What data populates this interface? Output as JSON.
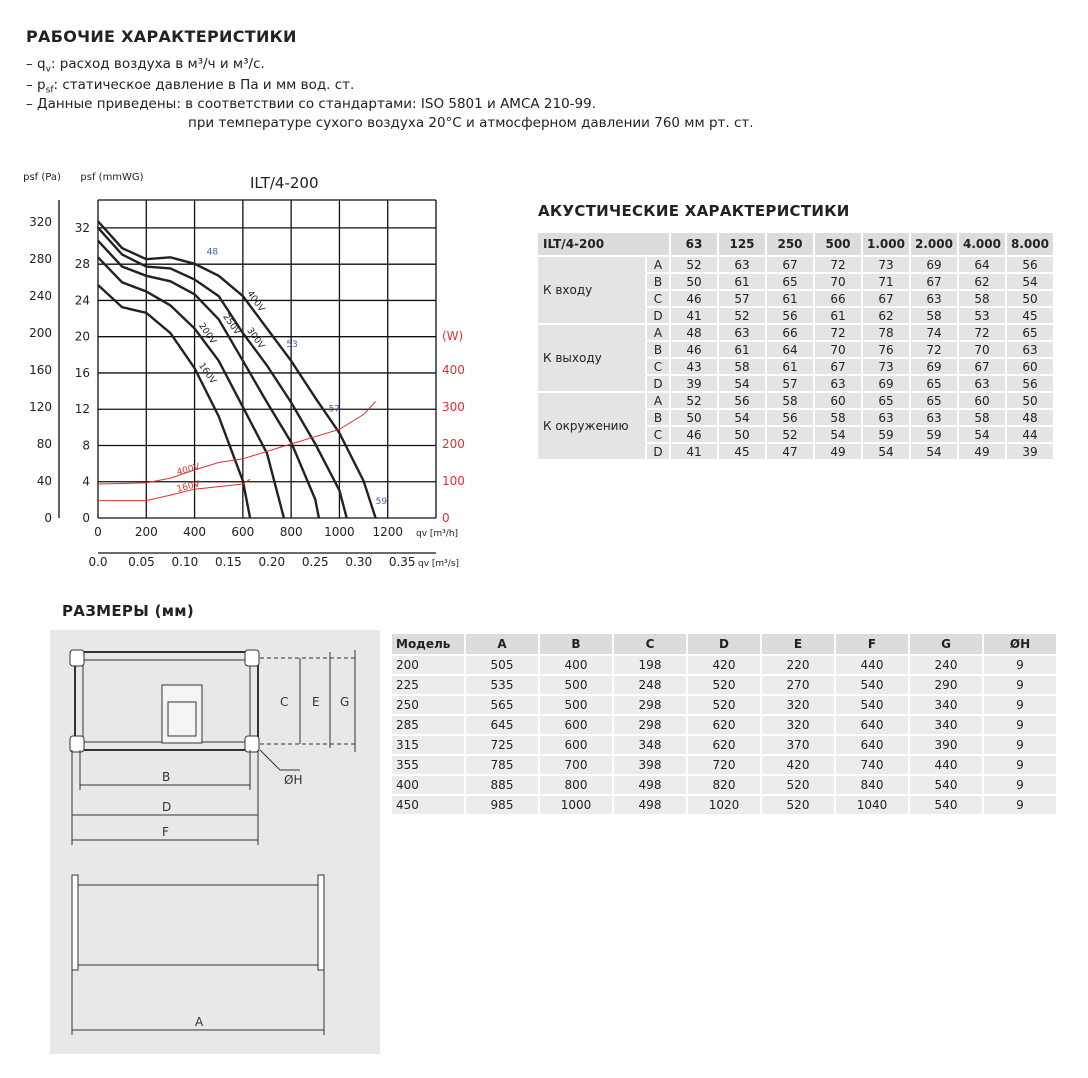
{
  "header": {
    "title": "РАБОЧИЕ ХАРАКТЕРИСТИКИ",
    "qv_sym": "q",
    "qv_sub": "v",
    "qv_text": ": расход воздуха в м³/ч и м³/с.",
    "psf_sym": "p",
    "psf_sub": "sf",
    "psf_text": ": статическое давление в Па и мм вод. ст.",
    "data_line": "– Данные приведены: в соответствии со стандартами: ISO 5801 и AMCA 210-99.",
    "data_line2": "при температуре сухого воздуха 20°C и атмосферном давлении 760 мм рт. ст."
  },
  "chart_data": {
    "type": "line",
    "title": "ILT/4-200",
    "ylabel_left": "psf (Pa)",
    "ylabel_mm": "psf (mmWG)",
    "ylabel_right": "(W)",
    "xlabel": "qv [m³/h]",
    "xlabel2": "qv [m³/s]",
    "xlim": [
      0,
      1400
    ],
    "ylim_pa": [
      0,
      344
    ],
    "ylim_w": [
      0,
      860
    ],
    "grid": true,
    "x_ticks": [
      0,
      200,
      400,
      600,
      800,
      1000,
      1200
    ],
    "x2_ticks": [
      "0.0",
      "0.05",
      "0.10",
      "0.15",
      "0.20",
      "0.25",
      "0.30",
      "0.35"
    ],
    "y_pa_ticks": [
      0,
      40,
      80,
      120,
      160,
      200,
      240,
      280,
      320
    ],
    "y_mm_ticks": [
      0,
      4,
      8,
      12,
      16,
      20,
      24,
      28,
      32
    ],
    "y_w_ticks": [
      0,
      100,
      200,
      300,
      400
    ],
    "pressure_series": [
      {
        "name": "400V",
        "x": [
          0,
          100,
          200,
          300,
          400,
          500,
          600,
          700,
          800,
          900,
          1000,
          1100,
          1150
        ],
        "y": [
          321,
          292,
          280,
          282,
          275,
          262,
          240,
          205,
          170,
          130,
          92,
          40,
          0
        ]
      },
      {
        "name": "300V",
        "x": [
          0,
          100,
          200,
          300,
          400,
          500,
          600,
          700,
          800,
          900,
          1000,
          1030
        ],
        "y": [
          314,
          285,
          272,
          270,
          258,
          240,
          200,
          165,
          125,
          80,
          30,
          0
        ]
      },
      {
        "name": "250V",
        "x": [
          0,
          100,
          200,
          300,
          400,
          500,
          600,
          700,
          800,
          900,
          915
        ],
        "y": [
          300,
          272,
          262,
          256,
          242,
          215,
          170,
          125,
          82,
          20,
          0
        ]
      },
      {
        "name": "200V",
        "x": [
          0,
          100,
          200,
          300,
          400,
          500,
          600,
          700,
          770
        ],
        "y": [
          282,
          255,
          245,
          230,
          205,
          170,
          120,
          70,
          0
        ]
      },
      {
        "name": "160V",
        "x": [
          0,
          100,
          200,
          300,
          400,
          500,
          600,
          630
        ],
        "y": [
          252,
          228,
          222,
          200,
          162,
          110,
          40,
          0
        ]
      }
    ],
    "power_series": [
      {
        "name": "400V",
        "x": [
          0,
          200,
          300,
          400,
          500,
          600,
          800,
          1000,
          1100,
          1150
        ],
        "y": [
          92,
          95,
          108,
          130,
          150,
          160,
          200,
          240,
          280,
          315
        ]
      },
      {
        "name": "160V",
        "x": [
          0,
          200,
          300,
          400,
          600,
          630
        ],
        "y": [
          47,
          47,
          62,
          78,
          92,
          105
        ]
      }
    ],
    "noise_labels": [
      "48",
      "53",
      "57",
      "59"
    ],
    "colors": {
      "pressure": "#222222",
      "power": "#e03030",
      "noise": "#4060b0"
    }
  },
  "acoustic": {
    "title": "АКУСТИЧЕСКИЕ ХАРАКТЕРИСТИКИ",
    "model": "ILT/4-200",
    "freqs": [
      "63",
      "125",
      "250",
      "500",
      "1.000",
      "2.000",
      "4.000",
      "8.000"
    ],
    "groups": [
      {
        "label": "К входу",
        "rows": [
          [
            "A",
            "52",
            "63",
            "67",
            "72",
            "73",
            "69",
            "64",
            "56"
          ],
          [
            "B",
            "50",
            "61",
            "65",
            "70",
            "71",
            "67",
            "62",
            "54"
          ],
          [
            "C",
            "46",
            "57",
            "61",
            "66",
            "67",
            "63",
            "58",
            "50"
          ],
          [
            "D",
            "41",
            "52",
            "56",
            "61",
            "62",
            "58",
            "53",
            "45"
          ]
        ]
      },
      {
        "label": "К выходу",
        "rows": [
          [
            "A",
            "48",
            "63",
            "66",
            "72",
            "78",
            "74",
            "72",
            "65"
          ],
          [
            "B",
            "46",
            "61",
            "64",
            "70",
            "76",
            "72",
            "70",
            "63"
          ],
          [
            "C",
            "43",
            "58",
            "61",
            "67",
            "73",
            "69",
            "67",
            "60"
          ],
          [
            "D",
            "39",
            "54",
            "57",
            "63",
            "69",
            "65",
            "63",
            "56"
          ]
        ]
      },
      {
        "label": "К окружению",
        "rows": [
          [
            "A",
            "52",
            "56",
            "58",
            "60",
            "65",
            "65",
            "60",
            "50"
          ],
          [
            "B",
            "50",
            "54",
            "56",
            "58",
            "63",
            "63",
            "58",
            "48"
          ],
          [
            "C",
            "46",
            "50",
            "52",
            "54",
            "59",
            "59",
            "54",
            "44"
          ],
          [
            "D",
            "41",
            "45",
            "47",
            "49",
            "54",
            "54",
            "49",
            "39"
          ]
        ]
      }
    ]
  },
  "dimensions": {
    "title": "РАЗМЕРЫ (мм)",
    "drawing_labels": [
      "A",
      "B",
      "C",
      "D",
      "E",
      "F",
      "G",
      "ØH"
    ],
    "headers": [
      "Модель",
      "A",
      "B",
      "C",
      "D",
      "E",
      "F",
      "G",
      "ØH"
    ],
    "rows": [
      [
        "200",
        "505",
        "400",
        "198",
        "420",
        "220",
        "440",
        "240",
        "9"
      ],
      [
        "225",
        "535",
        "500",
        "248",
        "520",
        "270",
        "540",
        "290",
        "9"
      ],
      [
        "250",
        "565",
        "500",
        "298",
        "520",
        "320",
        "540",
        "340",
        "9"
      ],
      [
        "285",
        "645",
        "600",
        "298",
        "620",
        "320",
        "640",
        "340",
        "9"
      ],
      [
        "315",
        "725",
        "600",
        "348",
        "620",
        "370",
        "640",
        "390",
        "9"
      ],
      [
        "355",
        "785",
        "700",
        "398",
        "720",
        "420",
        "740",
        "440",
        "9"
      ],
      [
        "400",
        "885",
        "800",
        "498",
        "820",
        "520",
        "840",
        "540",
        "9"
      ],
      [
        "450",
        "985",
        "1000",
        "498",
        "1020",
        "520",
        "1040",
        "540",
        "9"
      ]
    ]
  }
}
